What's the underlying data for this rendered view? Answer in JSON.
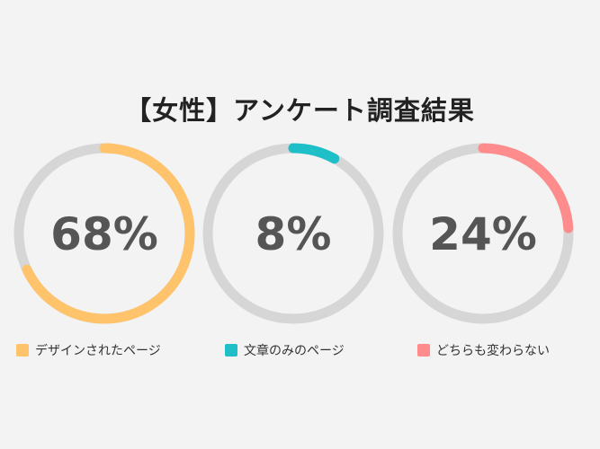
{
  "title": "【女性】アンケート調査結果",
  "track_color": "#d6d6d6",
  "chart_data": {
    "type": "pie",
    "subtype": "donut-rings",
    "title": "【女性】アンケート調査結果",
    "unit": "%",
    "series": [
      {
        "name": "デザインされたページ",
        "value": 68,
        "label": "68%",
        "color": "#ffc36b"
      },
      {
        "name": "文章のみのページ",
        "value": 8,
        "label": "8%",
        "color": "#1fbfc8"
      },
      {
        "name": "どちらも変わらない",
        "value": 24,
        "label": "24%",
        "color": "#ff8c8c"
      }
    ],
    "legend_position": "bottom"
  }
}
